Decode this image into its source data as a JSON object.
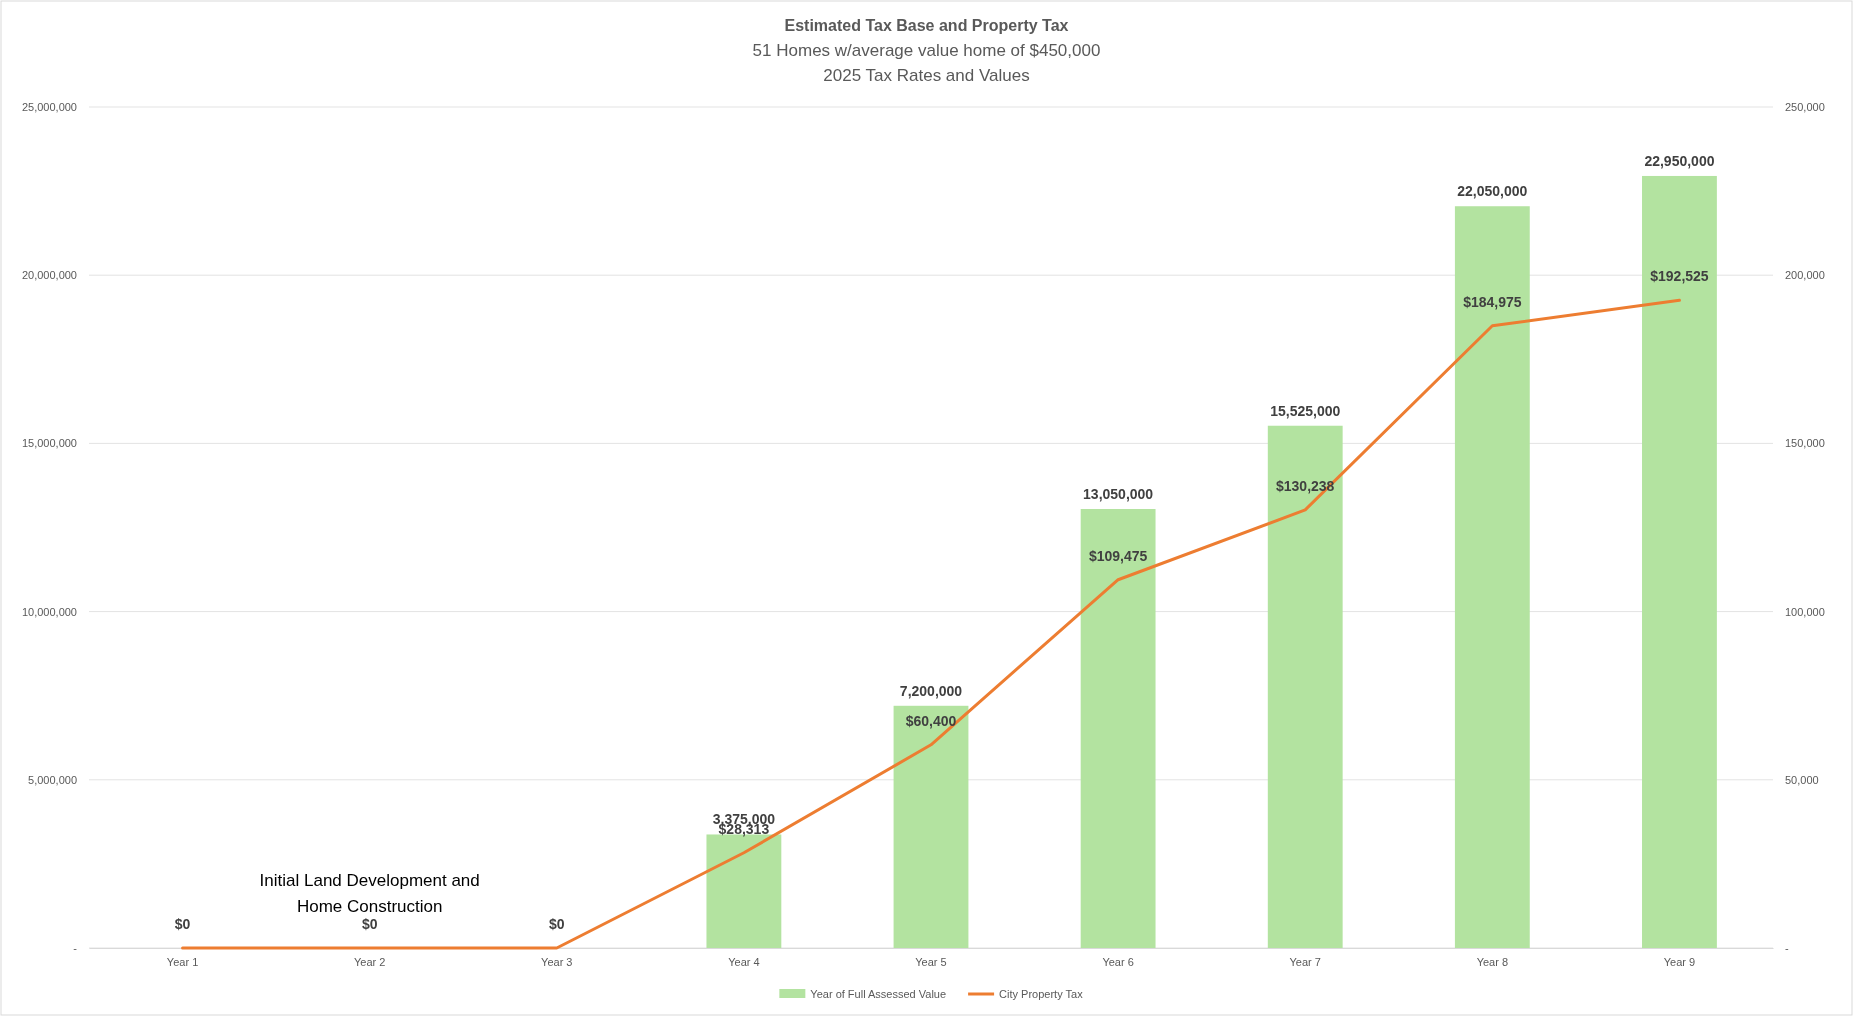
{
  "chart_data": {
    "type": "bar",
    "title": "Estimated Tax Base and Property Tax",
    "subtitle": "51 Homes w/average value home of $450,000\n2025 Tax Rates and Values",
    "categories": [
      "Year 1",
      "Year 2",
      "Year 3",
      "Year 4",
      "Year 5",
      "Year 6",
      "Year 7",
      "Year 8",
      "Year 9"
    ],
    "series": [
      {
        "name": "Year of Full Assessed Value",
        "color": "#b3e3a0",
        "values": [
          0,
          0,
          0,
          3375000,
          7200000,
          13050000,
          15525000,
          22050000,
          22950000
        ],
        "value_labels": [
          null,
          null,
          null,
          "3,375,000",
          "7,200,000",
          "13,050,000",
          "15,525,000",
          "22,050,000",
          "22,950,000"
        ]
      },
      {
        "name": "City Property Tax",
        "type": "line",
        "axis": "y2",
        "color": "#ed7d31",
        "values": [
          0,
          0,
          0,
          28313,
          60400,
          109475,
          130238,
          184975,
          192525
        ],
        "value_labels": [
          "$0",
          "$0",
          "$0",
          "$28,313",
          "$60,400",
          "$109,475",
          "$130,238",
          "$184,975",
          "$192,525"
        ]
      }
    ],
    "ylim": [
      0,
      25000000
    ],
    "yticks": [
      {
        "value": 0,
        "label": "-"
      },
      {
        "value": 5000000,
        "label": "5,000,000"
      },
      {
        "value": 10000000,
        "label": "10,000,000"
      },
      {
        "value": 15000000,
        "label": "15,000,000"
      },
      {
        "value": 20000000,
        "label": "20,000,000"
      },
      {
        "value": 25000000,
        "label": "25,000,000"
      }
    ],
    "y2lim": [
      0,
      250000
    ],
    "y2ticks": [
      {
        "value": 0,
        "label": "-"
      },
      {
        "value": 50000,
        "label": "50,000"
      },
      {
        "value": 100000,
        "label": "100,000"
      },
      {
        "value": 150000,
        "label": "150,000"
      },
      {
        "value": 200000,
        "label": "200,000"
      },
      {
        "value": 250000,
        "label": "250,000"
      }
    ],
    "annotations": [
      "Initial Land Development and Home Construction"
    ],
    "grid": "y",
    "legend": "bottom",
    "marker": "none",
    "line_style": "solid"
  }
}
